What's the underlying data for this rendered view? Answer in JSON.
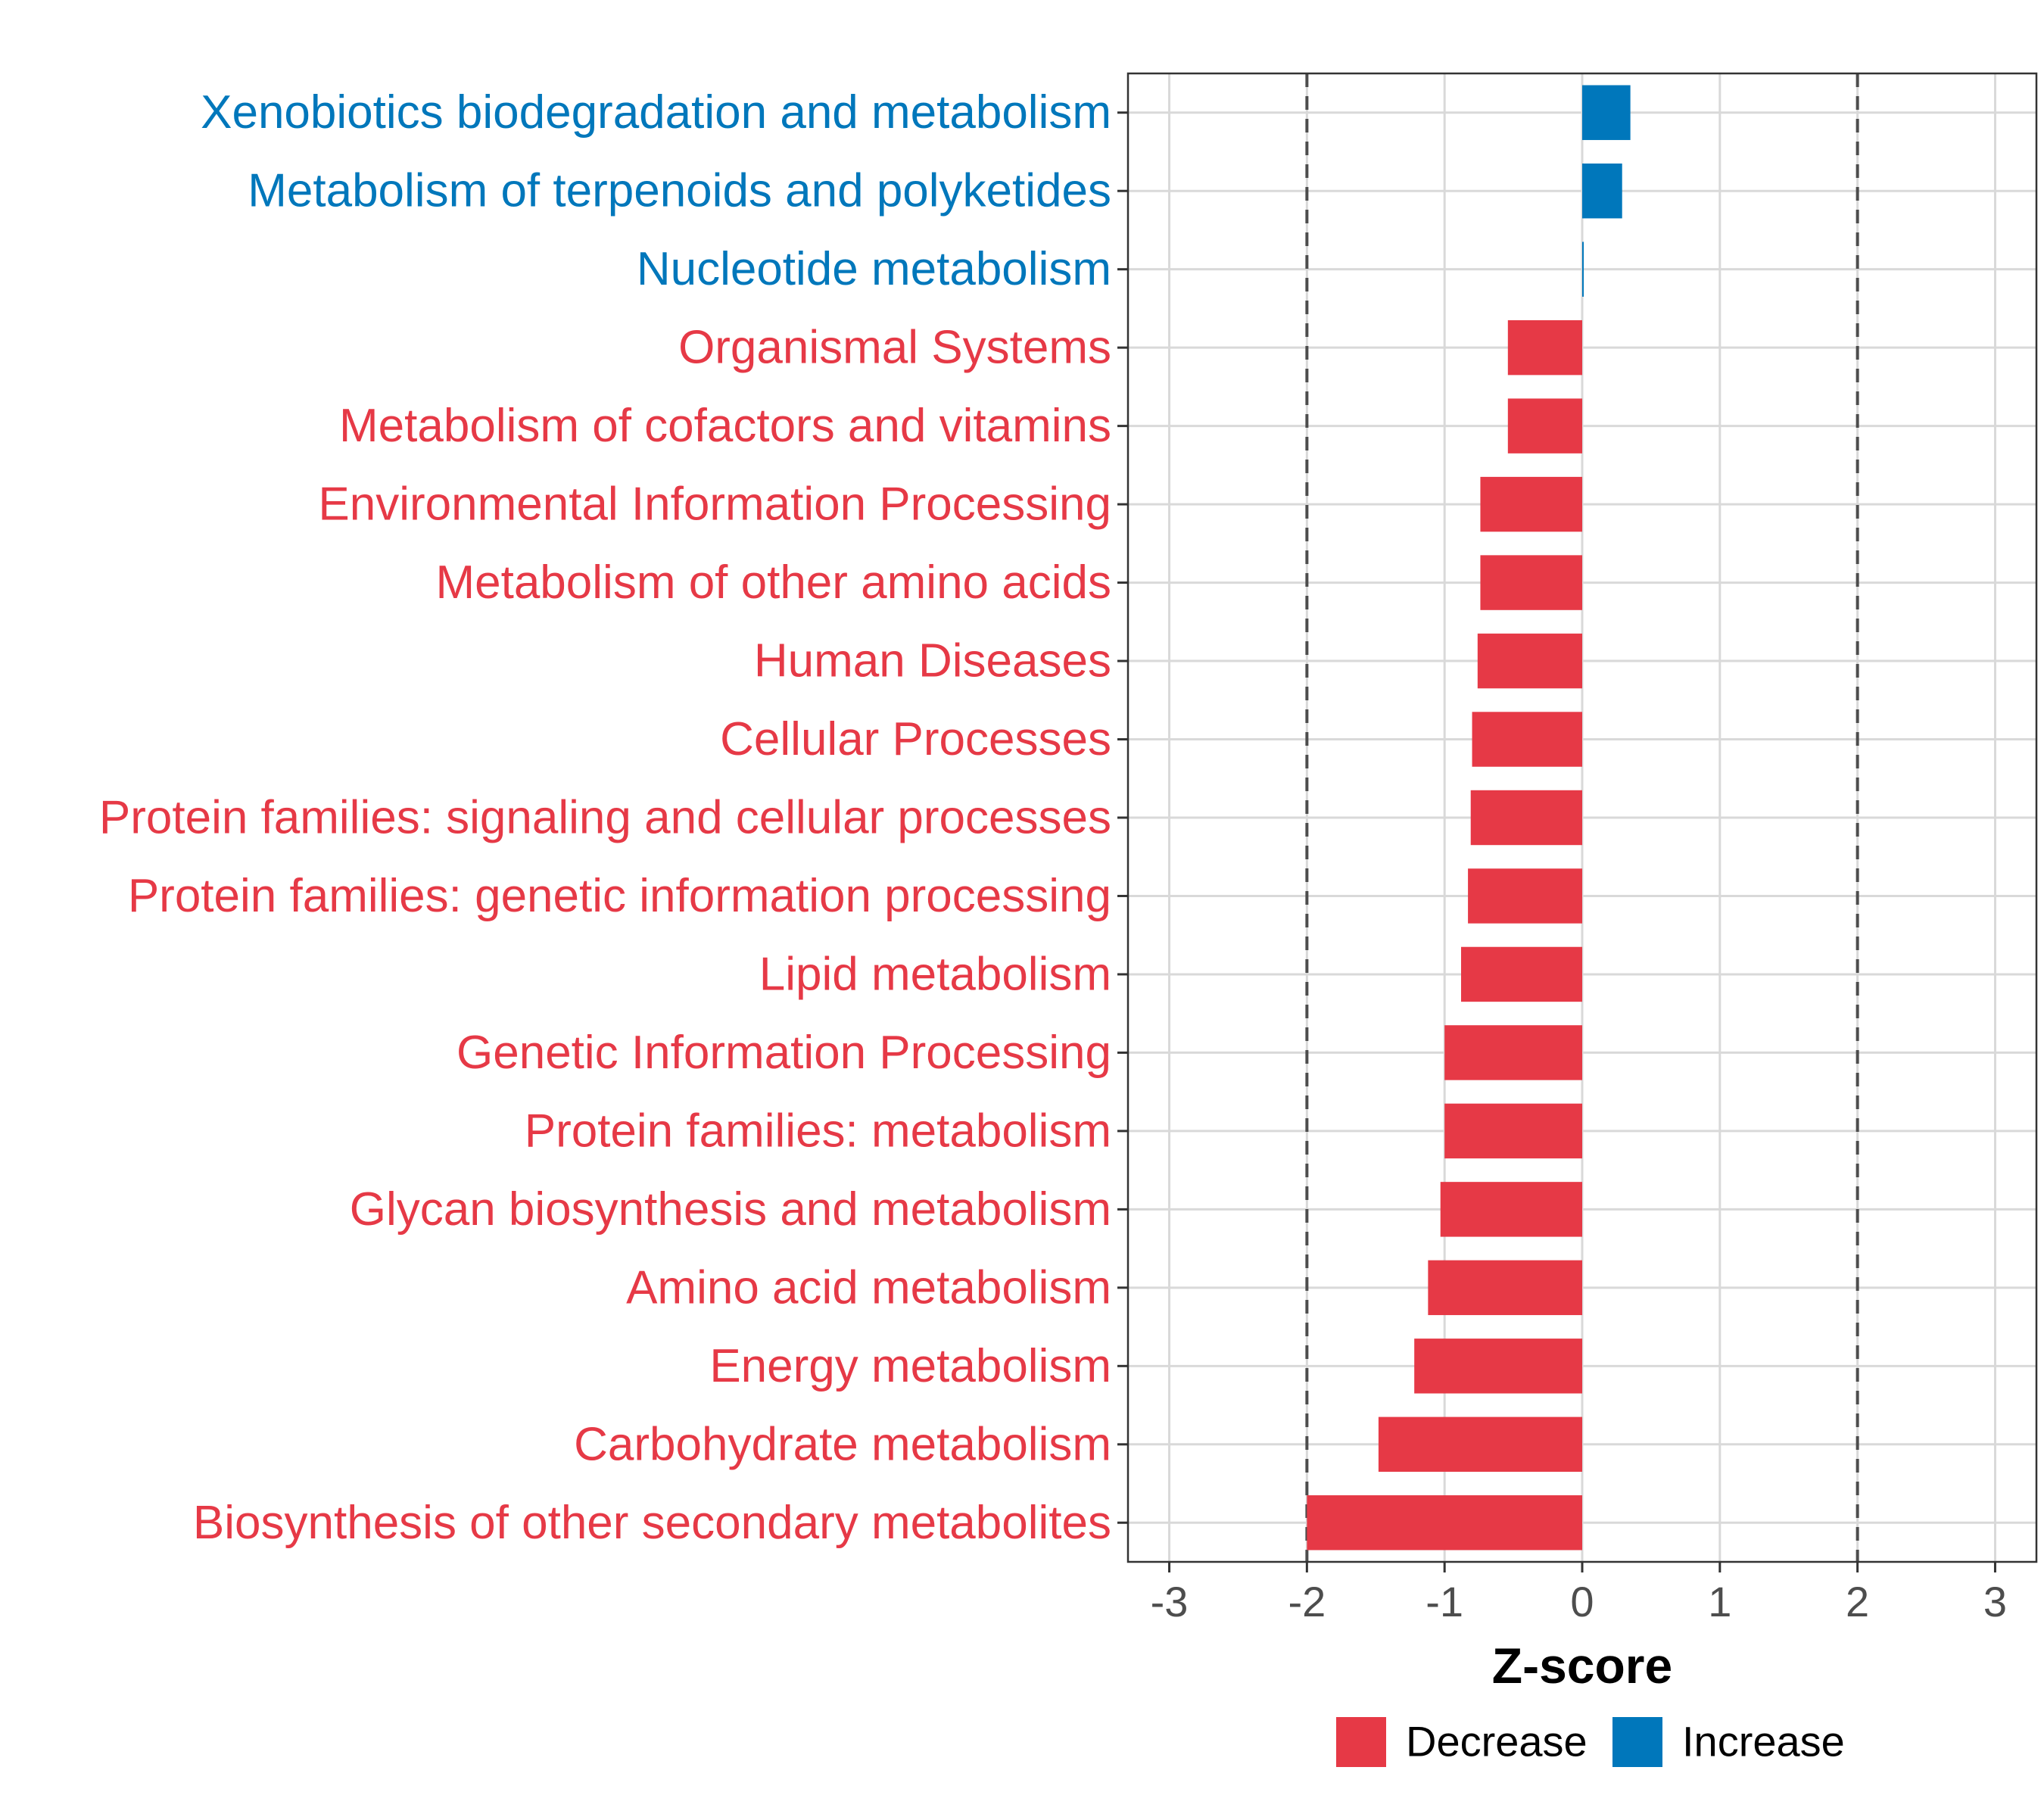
{
  "chart_data": {
    "type": "bar",
    "orientation": "horizontal",
    "title": "",
    "xlabel": "Z-score",
    "ylabel": "",
    "xlim": [
      -3.3,
      3.3
    ],
    "xticks": [
      -3,
      -2,
      -1,
      0,
      1,
      2,
      3
    ],
    "tick_labels": [
      "-3",
      "-2",
      "-1",
      "0",
      "1",
      "2",
      "3"
    ],
    "reference_lines": [
      -2,
      2
    ],
    "grid": true,
    "categories": [
      "Xenobiotics biodegradation and metabolism",
      "Metabolism of terpenoids and polyketides",
      "Nucleotide metabolism",
      "Organismal Systems",
      "Metabolism of cofactors and vitamins",
      "Environmental Information Processing",
      "Metabolism of other amino acids",
      "Human Diseases",
      "Cellular Processes",
      "Protein families: signaling and cellular processes",
      "Protein families: genetic information processing",
      "Lipid metabolism",
      "Genetic Information Processing",
      "Protein families: metabolism",
      "Glycan biosynthesis and metabolism",
      "Amino acid metabolism",
      "Energy metabolism",
      "Carbohydrate metabolism",
      "Biosynthesis of other secondary metabolites"
    ],
    "values": [
      0.35,
      0.29,
      0.01,
      -0.54,
      -0.54,
      -0.74,
      -0.74,
      -0.76,
      -0.8,
      -0.81,
      -0.83,
      -0.88,
      -1.0,
      -1.0,
      -1.03,
      -1.12,
      -1.22,
      -1.48,
      -2.0
    ],
    "direction": [
      "Increase",
      "Increase",
      "Increase",
      "Decrease",
      "Decrease",
      "Decrease",
      "Decrease",
      "Decrease",
      "Decrease",
      "Decrease",
      "Decrease",
      "Decrease",
      "Decrease",
      "Decrease",
      "Decrease",
      "Decrease",
      "Decrease",
      "Decrease",
      "Decrease"
    ],
    "legend": {
      "placement": "bottom",
      "entries": [
        {
          "label": "Decrease",
          "color": "#e63946"
        },
        {
          "label": "Increase",
          "color": "#0077bb"
        }
      ]
    },
    "colors": {
      "Decrease": "#e63946",
      "Increase": "#0077bb",
      "grid": "#d9d9d9",
      "refline": "#4d4d4d",
      "border": "#333333"
    }
  }
}
